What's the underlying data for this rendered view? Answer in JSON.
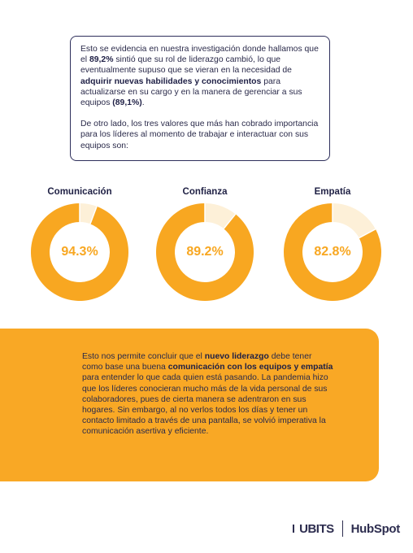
{
  "intro": {
    "p1": [
      {
        "text": "Esto se evidencia en nuestra investigación donde hallamos que el ",
        "bold": false
      },
      {
        "text": "89,2%",
        "bold": true
      },
      {
        "text": " sintió que su rol de liderazgo cambió, lo que eventualmente supuso que se vieran en la necesidad de ",
        "bold": false
      },
      {
        "text": "adquirir nuevas habilidades y conocimientos",
        "bold": true
      },
      {
        "text": " para actualizarse en su cargo y en la manera de gerenciar a sus equipos ",
        "bold": false
      },
      {
        "text": "(89,1%)",
        "bold": true
      },
      {
        "text": ".",
        "bold": false
      }
    ],
    "p2": "De otro lado, los tres valores que más han cobrado importancia para los líderes al momento de trabajar e interactuar con sus equipos son:"
  },
  "values": [
    {
      "title": "Comunicación",
      "percent_label": "94.3%",
      "fraction": 0.943
    },
    {
      "title": "Confianza",
      "percent_label": "89.2%",
      "fraction": 0.892
    },
    {
      "title": "Empatía",
      "percent_label": "82.8%",
      "fraction": 0.828
    }
  ],
  "colors": {
    "accent": "#f9a825",
    "donut_fill": "#f8a721",
    "donut_track": "#fdf0d8",
    "navy": "#2e2f5b"
  },
  "conclusion": [
    {
      "text": "Esto nos permite concluir que el ",
      "bold": false
    },
    {
      "text": "nuevo liderazgo",
      "bold": true
    },
    {
      "text": " debe tener como base una buena ",
      "bold": false
    },
    {
      "text": "comunicación con los equipos y empatía",
      "bold": true
    },
    {
      "text": " para entender lo que cada quien está pasando. La pandemia hizo que los líderes conocieran mucho más de la vida personal de sus colaboradores, pues de cierta manera se adentraron en sus hogares. Sin embargo, al no verlos todos los días y tener un contacto limitado a través de una pantalla, se volvió imperativa la comunicación asertiva y eficiente.",
      "bold": false
    }
  ],
  "footer": {
    "logo1": "UBITS",
    "logo2": "HubSpot"
  }
}
